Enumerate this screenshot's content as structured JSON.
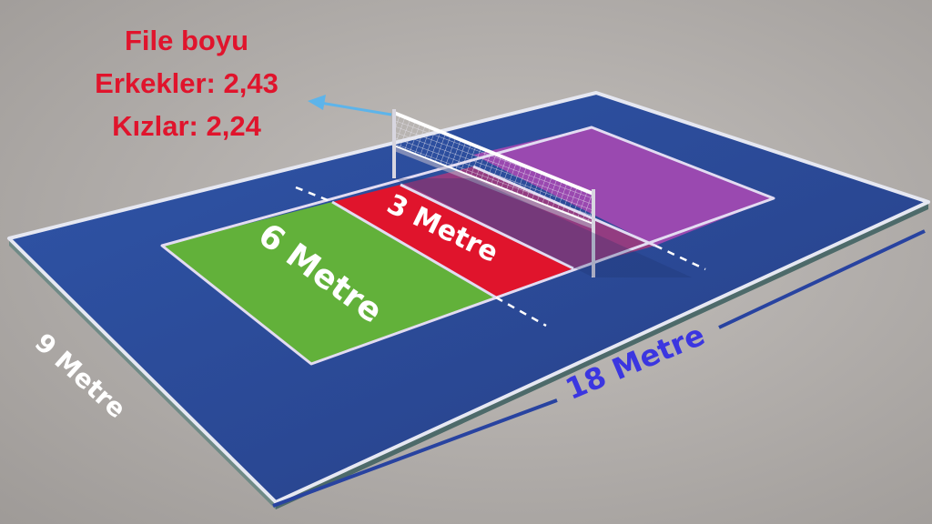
{
  "net_height": {
    "title": "File boyu",
    "men": "Erkekler: 2,43",
    "women": "Kızlar: 2,24"
  },
  "zones": {
    "back_zone": "6 Metre",
    "attack_zone": "3 Metre"
  },
  "dimensions": {
    "width": "9 Metre",
    "length": "18 Metre"
  },
  "colors": {
    "background": "#a9a5a2",
    "surround": "#2d4e9c",
    "back_zone": "#62b13a",
    "attack_zone": "#e0142c",
    "opponent_half": "#9a49b0",
    "net_label": "#e0142c",
    "length_label": "#3b36e0",
    "width_label": "#ffffff",
    "arrow": "#5db4ea"
  }
}
